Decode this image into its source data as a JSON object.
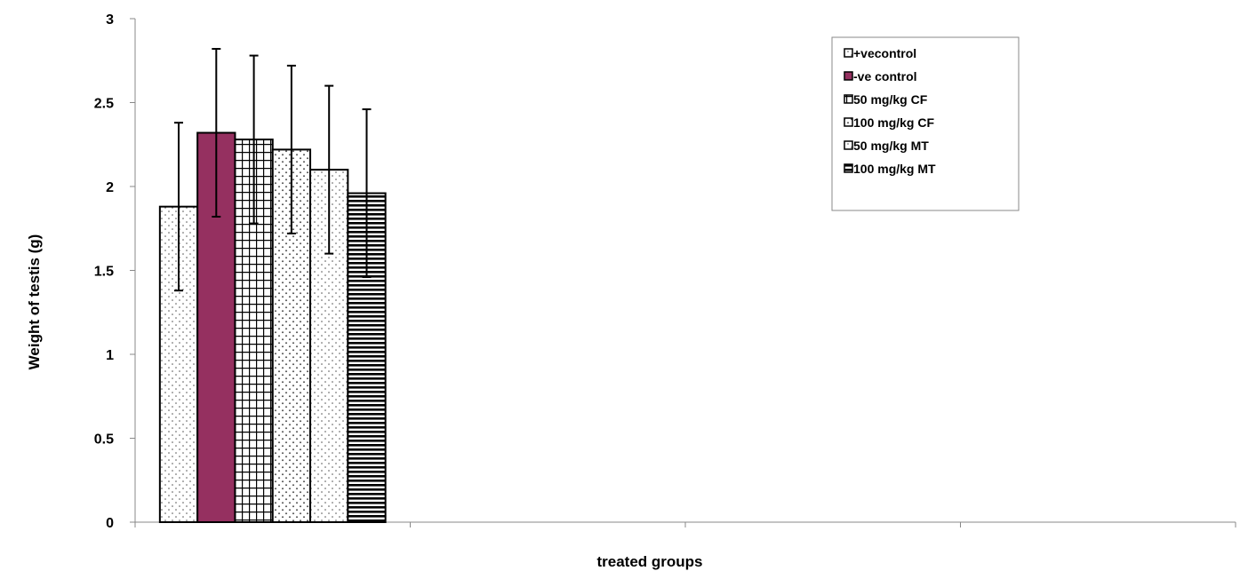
{
  "chart_data": {
    "type": "bar",
    "xlabel": "treated groups",
    "ylabel": "Weight of testis (g)",
    "ylim": [
      0,
      3
    ],
    "yticks": [
      "0",
      "0.5",
      "1",
      "1.5",
      "2",
      "2.5",
      "3"
    ],
    "category_slots": 4,
    "grid": false,
    "legend_position": "top-right",
    "series": [
      {
        "name": "+vecontrol",
        "value": 1.88,
        "error": 0.5,
        "pattern": "dots",
        "color": "#ffffff"
      },
      {
        "name": "-ve control",
        "value": 2.32,
        "error": 0.5,
        "pattern": "solid",
        "color": "#953060"
      },
      {
        "name": "50 mg/kg CF",
        "value": 2.28,
        "error": 0.5,
        "pattern": "grid",
        "color": "#ffffff"
      },
      {
        "name": "100 mg/kg CF",
        "value": 2.22,
        "error": 0.5,
        "pattern": "diamonds",
        "color": "#ffffff"
      },
      {
        "name": "50 mg/kg MT",
        "value": 2.1,
        "error": 0.5,
        "pattern": "dots",
        "color": "#ffffff"
      },
      {
        "name": "100 mg/kg MT",
        "value": 1.96,
        "error": 0.5,
        "pattern": "horizontal",
        "color": "#ffffff"
      }
    ]
  }
}
